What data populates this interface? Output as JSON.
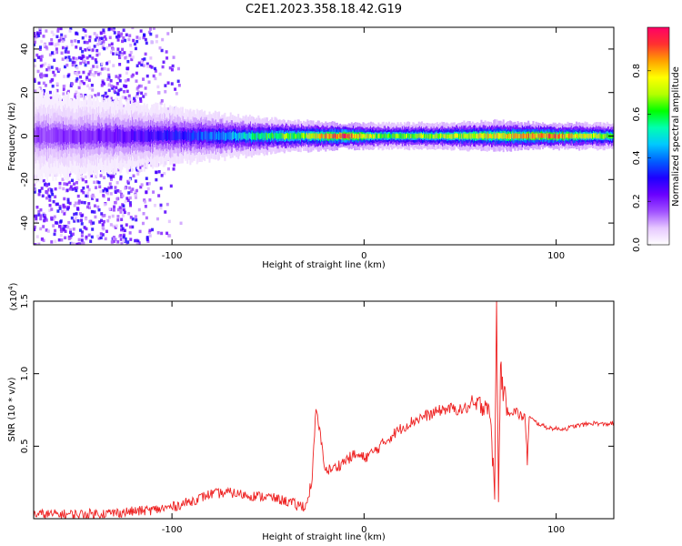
{
  "title": "C2E1.2023.358.18.42.G19",
  "chart_data": [
    {
      "type": "heatmap",
      "xlabel": "Height of straight line (km)",
      "ylabel": "Frequency (Hz)",
      "xlim": [
        -172,
        130
      ],
      "ylim": [
        -50,
        50
      ],
      "xticks": [
        -100,
        0,
        100
      ],
      "yticks": [
        -40,
        -20,
        0,
        20,
        40
      ],
      "colorbar": {
        "label": "Normalized spectral amplitude",
        "range": [
          0.0,
          1.0
        ],
        "ticks": [
          0.0,
          0.2,
          0.4,
          0.6,
          0.8
        ],
        "tick_labels": [
          "0.0",
          "0.2",
          "0.4",
          "0.6",
          "0.8"
        ],
        "colormap": [
          "#ffffff",
          "#e6c8ff",
          "#a050ff",
          "#6a00ff",
          "#1e00ff",
          "#0060ff",
          "#00c8ff",
          "#00ffb0",
          "#00ff00",
          "#b4ff00",
          "#ffff00",
          "#ffa000",
          "#ff3030",
          "#ff0066"
        ]
      },
      "ridge": [
        {
          "x": -172,
          "halfwidth_hz": 10,
          "amplitude": 0.18
        },
        {
          "x": -140,
          "halfwidth_hz": 9,
          "amplitude": 0.22
        },
        {
          "x": -110,
          "halfwidth_hz": 7,
          "amplitude": 0.28
        },
        {
          "x": -90,
          "halfwidth_hz": 6,
          "amplitude": 0.35
        },
        {
          "x": -70,
          "halfwidth_hz": 5,
          "amplitude": 0.45
        },
        {
          "x": -50,
          "halfwidth_hz": 4,
          "amplitude": 0.6
        },
        {
          "x": -30,
          "halfwidth_hz": 3.5,
          "amplitude": 0.7
        },
        {
          "x": -10,
          "halfwidth_hz": 3,
          "amplitude": 0.95
        },
        {
          "x": 10,
          "halfwidth_hz": 3,
          "amplitude": 0.65
        },
        {
          "x": 40,
          "halfwidth_hz": 3,
          "amplitude": 0.7
        },
        {
          "x": 70,
          "halfwidth_hz": 3.5,
          "amplitude": 0.8
        },
        {
          "x": 95,
          "halfwidth_hz": 3,
          "amplitude": 0.9
        },
        {
          "x": 130,
          "halfwidth_hz": 3,
          "amplitude": 0.65
        }
      ],
      "scatter_region": {
        "x_from": -172,
        "x_to": -95,
        "y_from": -50,
        "y_to": 50,
        "amplitude": 0.2
      }
    },
    {
      "type": "line",
      "xlabel": "Height of straight line (km)",
      "ylabel": "SNR (10 * v/v)",
      "y_multiplier": "(x10",
      "y_multiplier_exp": "4",
      "xlim": [
        -172,
        130
      ],
      "ylim": [
        0,
        15000
      ],
      "xticks": [
        -100,
        0,
        100
      ],
      "yticks": [
        5000,
        10000,
        15000
      ],
      "ytick_labels": [
        "0.5",
        "1.0",
        "1.5"
      ],
      "color": "#ee2222",
      "series": [
        {
          "x": [
            -172,
            -150,
            -130,
            -110,
            -100,
            -90,
            -80,
            -70,
            -60,
            -50,
            -40,
            -35,
            -30,
            -27,
            -25,
            -20,
            -15,
            -10,
            -5,
            0,
            5,
            10,
            15,
            20,
            25,
            30,
            35,
            40,
            45,
            50,
            55,
            60,
            65,
            68,
            69,
            70,
            71,
            72,
            75,
            80,
            84,
            85,
            86,
            90,
            95,
            100,
            105,
            110,
            115,
            120,
            125,
            130
          ],
          "y": [
            300,
            300,
            400,
            600,
            800,
            1200,
            1700,
            1800,
            1600,
            1500,
            1200,
            900,
            900,
            2800,
            7600,
            3300,
            3500,
            4000,
            4400,
            4200,
            4600,
            5200,
            5800,
            6300,
            6700,
            7000,
            7200,
            7500,
            7600,
            7500,
            7700,
            7800,
            8000,
            2000,
            15000,
            900,
            11000,
            9000,
            7500,
            7300,
            6800,
            4000,
            7000,
            6600,
            6300,
            6200,
            6200,
            6400,
            6500,
            6600,
            6500,
            6600
          ]
        }
      ]
    }
  ]
}
